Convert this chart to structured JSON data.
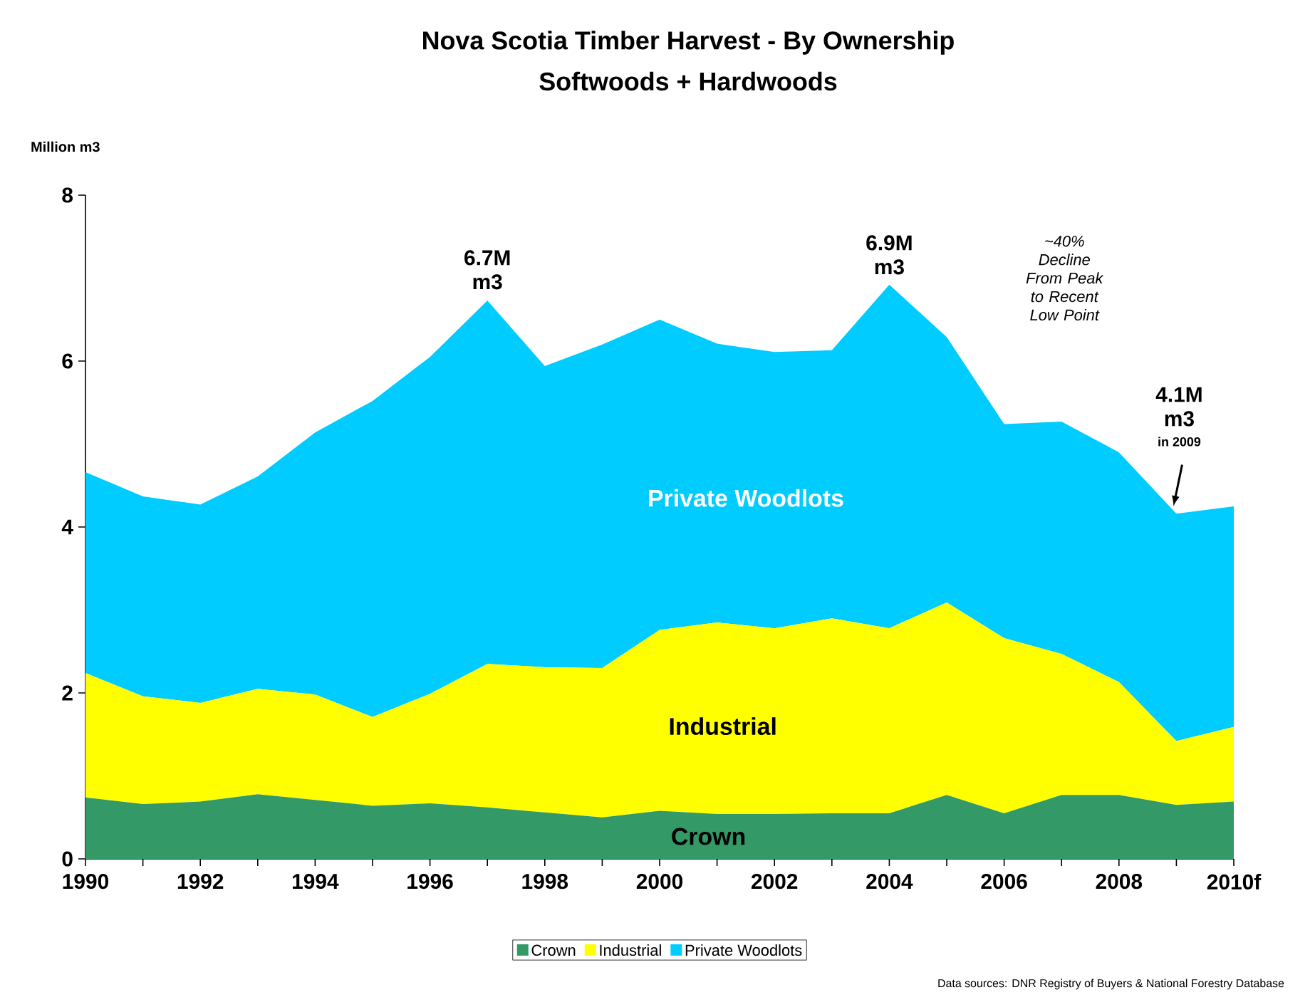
{
  "chart_data": {
    "type": "area",
    "title": "Nova Scotia Timber Harvest  - By Ownership",
    "subtitle": "Softwoods + Hardwoods",
    "ylabel": "Million m3",
    "categories": [
      "1990",
      null,
      "1992",
      null,
      "1994",
      null,
      "1996",
      null,
      "1998",
      null,
      "2000",
      null,
      "2002",
      null,
      "2004",
      null,
      "2006",
      null,
      "2008",
      null,
      "2010f"
    ],
    "stacked": true,
    "ylim": [
      0,
      8
    ],
    "yticks": [
      0,
      2,
      4,
      6,
      8
    ],
    "grid": false,
    "legend": "bottom",
    "series": [
      {
        "name": "Crown",
        "color": "#339966",
        "values": [
          0.74,
          0.66,
          0.69,
          0.78,
          0.71,
          0.64,
          0.67,
          0.62,
          0.56,
          0.5,
          0.58,
          0.54,
          0.54,
          0.55,
          0.55,
          0.77,
          0.55,
          0.77,
          0.77,
          0.65,
          0.69
        ]
      },
      {
        "name": "Industrial",
        "color": "#ffff00",
        "values": [
          1.5,
          1.3,
          1.19,
          1.27,
          1.27,
          1.07,
          1.32,
          1.73,
          1.75,
          1.8,
          2.18,
          2.31,
          2.24,
          2.35,
          2.23,
          2.32,
          2.11,
          1.7,
          1.36,
          0.77,
          0.9
        ]
      },
      {
        "name": "Private Woodlots",
        "color": "#00ccff",
        "values": [
          2.42,
          2.41,
          2.39,
          2.56,
          3.16,
          3.81,
          4.06,
          4.38,
          3.63,
          3.9,
          3.74,
          3.36,
          3.33,
          3.23,
          4.14,
          3.2,
          2.58,
          2.8,
          2.77,
          2.74,
          2.66
        ]
      }
    ],
    "annotations": [
      "6.7M m3",
      "6.9M m3",
      "~40% Decline From Peak to Recent Low Point",
      "4.1M m3",
      "in 2009",
      "Data sources: DNR Registry of Buyers & National Forestry Database"
    ]
  }
}
